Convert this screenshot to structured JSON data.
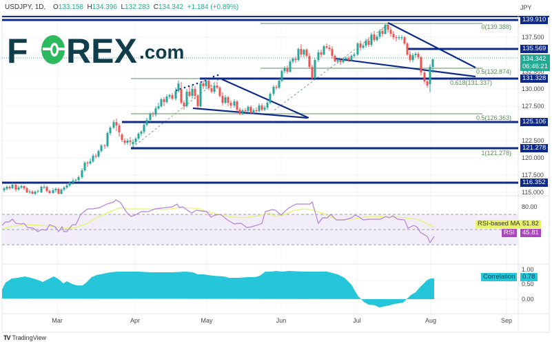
{
  "header": {
    "symbol": "USDJPY, 1D,",
    "open_label": "O",
    "open": "133.158",
    "high_label": "H",
    "high": "134.396",
    "low_label": "L",
    "low": "132.283",
    "close_label": "C",
    "close": "134.342",
    "change": "+1.184 (+0.89%)",
    "currency": "JPY"
  },
  "logo": {
    "text_before": "F",
    "text_after": "REX",
    "suffix": ".com"
  },
  "price_axis": {
    "ticks": [
      "137.500",
      "132.500",
      "130.000",
      "127.500",
      "122.500",
      "120.000",
      "117.500",
      "115.000"
    ],
    "current_price": "134.342",
    "countdown": "06:46:21",
    "levels": [
      "139.910",
      "135.569",
      "131.328",
      "125.106",
      "121.278",
      "116.352"
    ]
  },
  "fib_labels": {
    "f0": "0(139.388)",
    "f05_upper": "0.5(132.874)",
    "f0618": "0.618(131.337)",
    "f05_lower": "0.5(126.363)",
    "f1": "1(121.278)"
  },
  "rsi": {
    "axis_ticks": [
      "80.00"
    ],
    "ma_label": "RSI-based MA",
    "ma_value": "51.82",
    "rsi_label": "RSI",
    "rsi_value": "45.81"
  },
  "correlation": {
    "axis_ticks": [
      "1.00",
      "0.50",
      "0.00"
    ],
    "label": "Correlation",
    "value": "0.78"
  },
  "time_axis": {
    "months": [
      "Mar",
      "Apr",
      "May",
      "Jun",
      "Jul",
      "Aug",
      "Sep"
    ]
  },
  "footer": {
    "brand": "TradingView"
  },
  "colors": {
    "up": "#26a69a",
    "down": "#ef5350",
    "level": "#0d2a8a",
    "fib": "#7da07d",
    "rsi": "#b57edc",
    "rsi_ma": "#e8f36b",
    "corr": "#26c6da"
  },
  "chart_data": [
    {
      "type": "candlestick",
      "title": "USDJPY, 1D",
      "xlabel": "",
      "ylabel": "JPY",
      "x_ticks": [
        "Mar",
        "Apr",
        "May",
        "Jun",
        "Jul",
        "Aug",
        "Sep"
      ],
      "ylim": [
        114,
        141
      ],
      "last": {
        "open": 133.158,
        "high": 134.396,
        "low": 132.283,
        "close": 134.342,
        "change": 1.184,
        "change_pct": 0.89
      },
      "horizontal_levels": [
        139.91,
        135.569,
        131.328,
        125.106,
        121.278,
        116.352
      ],
      "fibonacci": [
        {
          "level": 0,
          "price": 139.388
        },
        {
          "level": 0.5,
          "price": 132.874
        },
        {
          "level": 0.618,
          "price": 131.337
        },
        {
          "level": 0.5,
          "price": 126.363
        },
        {
          "level": 1,
          "price": 121.278
        }
      ],
      "approx_closes_monthly": {
        "Feb": 115.5,
        "Mar": 122.0,
        "Apr": 130.0,
        "May": 127.5,
        "Jun": 135.5,
        "Jul": 133.0,
        "Aug": 134.3
      },
      "period_high": 139.39,
      "period_low": 114.8
    },
    {
      "type": "line",
      "title": "RSI",
      "series": [
        {
          "name": "RSI",
          "last": 45.81
        },
        {
          "name": "RSI-based MA",
          "last": 51.82
        }
      ],
      "bands": [
        70,
        50,
        30
      ],
      "ylim": [
        20,
        90
      ]
    },
    {
      "type": "area",
      "title": "Correlation",
      "series": [
        {
          "name": "Correlation",
          "last": 0.78,
          "approx_values_monthly": {
            "Feb": 0.5,
            "Mar": 0.6,
            "Apr": 0.9,
            "May": 0.88,
            "Jun": 0.85,
            "Jul": -0.15,
            "Aug": 0.78
          }
        }
      ],
      "ylim": [
        -0.3,
        1.1
      ]
    }
  ]
}
